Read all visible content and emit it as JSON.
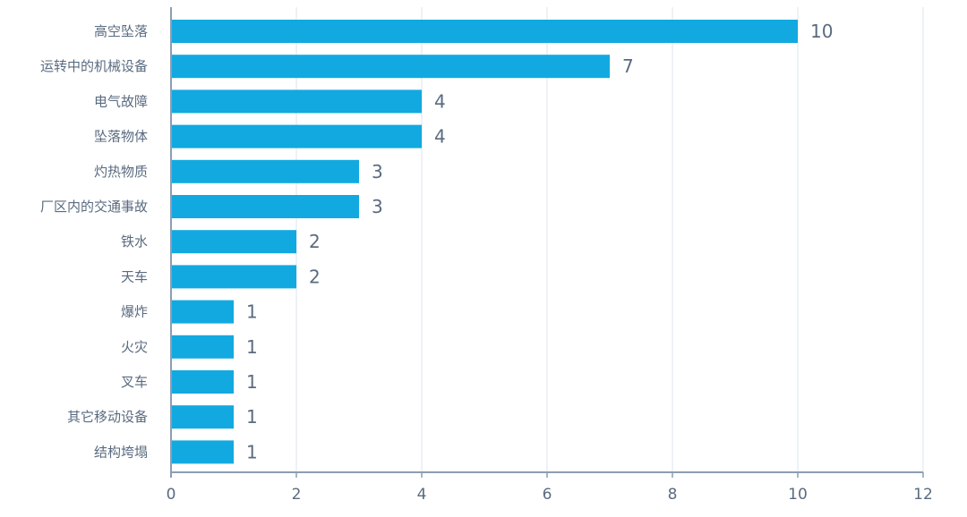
{
  "chart_data": {
    "type": "bar",
    "orientation": "horizontal",
    "categories": [
      "高空坠落",
      "运转中的机械设备",
      "电气故障",
      "坠落物体",
      "灼热物质",
      "厂区内的交通事故",
      "铁水",
      "天车",
      "爆炸",
      "火灾",
      "叉车",
      "其它移动设备",
      "结构垮塌"
    ],
    "values": [
      10,
      7,
      4,
      4,
      3,
      3,
      2,
      2,
      1,
      1,
      1,
      1,
      1
    ],
    "xlim": [
      0,
      12
    ],
    "xticks": [
      0,
      2,
      4,
      6,
      8,
      10,
      12
    ],
    "grid": true,
    "data_labels": true,
    "colors": {
      "bar": "#12a9e0",
      "axis": "#8c9db3",
      "grid": "#dde4ec",
      "label": "#5a6b80"
    }
  }
}
